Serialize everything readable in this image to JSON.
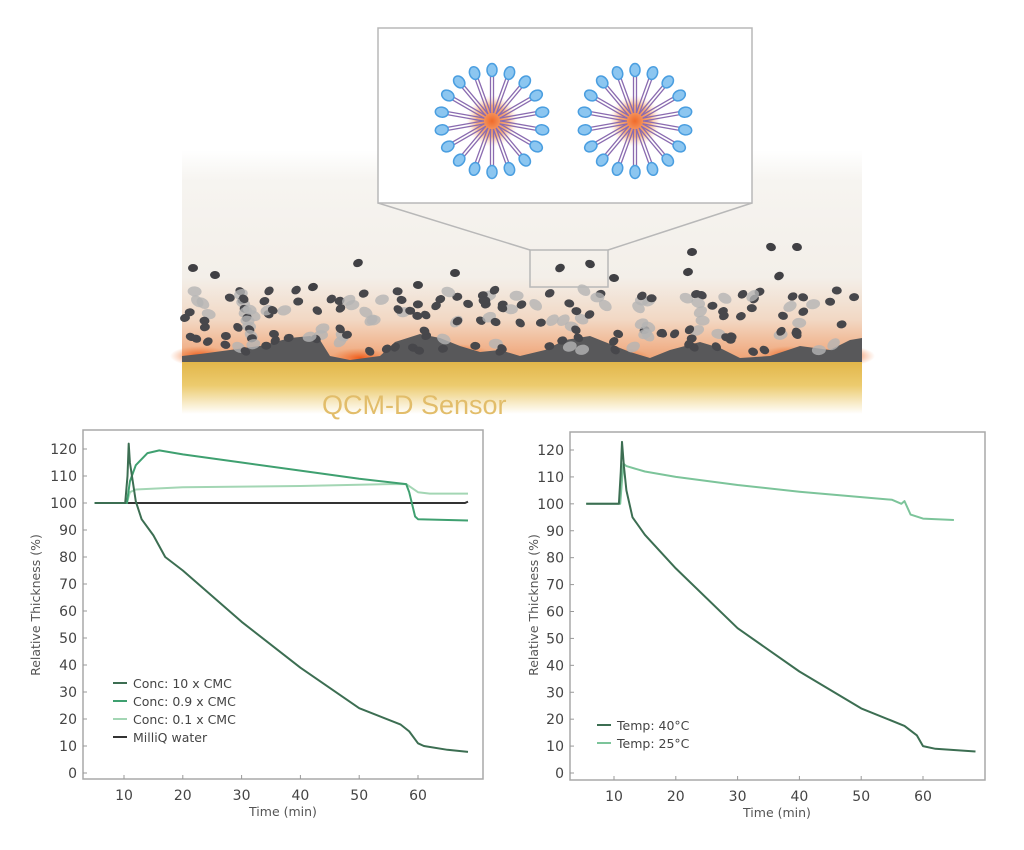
{
  "diagram": {
    "sensor_label": "QCM-D Sensor",
    "colors": {
      "gold": "#e8c25a",
      "film": "#5a5a5c",
      "heat": "#f06a2a",
      "head": "#6fb6ea",
      "tail": "#8a6bb0",
      "core": "#f07a3c"
    }
  },
  "chart_data": [
    {
      "type": "line",
      "xlabel": "Time (min)",
      "ylabel": "Relative Thickness (%)",
      "xlim": [
        4,
        70
      ],
      "ylim": [
        -2,
        125
      ],
      "xticks": [
        10,
        20,
        30,
        40,
        50,
        60
      ],
      "yticks": [
        0,
        10,
        20,
        30,
        40,
        50,
        60,
        70,
        80,
        90,
        100,
        110,
        120
      ],
      "grid": false,
      "legend": "bottom-left",
      "series": [
        {
          "name": "Conc: 10 x CMC",
          "color": "#3c6e52",
          "x": [
            5,
            10.2,
            10.6,
            10.8,
            11,
            12,
            13,
            15,
            17,
            20,
            30,
            40,
            50,
            57,
            58.5,
            60,
            61,
            65,
            68.5
          ],
          "y": [
            100,
            100,
            110,
            122,
            115,
            100.6,
            94,
            88,
            80,
            75,
            56,
            39,
            24,
            18,
            15.4,
            11,
            10,
            8.6,
            7.8
          ]
        },
        {
          "name": "Conc: 0.9 x CMC",
          "color": "#3fa070",
          "x": [
            5,
            10.5,
            11,
            12,
            14,
            16,
            20,
            30,
            40,
            50,
            58,
            58.5,
            59.5,
            60,
            68.5
          ],
          "y": [
            100,
            100,
            108,
            114,
            118.5,
            119.5,
            118,
            115,
            112,
            109,
            107,
            104,
            95,
            94,
            93.5
          ]
        },
        {
          "name": "Conc: 0.1 x CMC",
          "color": "#a3d6b4",
          "x": [
            5,
            10.5,
            11,
            12,
            20,
            40,
            55,
            58,
            60,
            62,
            68.5
          ],
          "y": [
            100,
            100,
            104,
            105,
            105.8,
            106.3,
            107,
            107,
            104,
            103.5,
            103.5
          ]
        },
        {
          "name": "MilliQ water",
          "color": "#333333",
          "x": [
            5,
            68,
            68.5
          ],
          "y": [
            100,
            100,
            100.5
          ]
        }
      ]
    },
    {
      "type": "line",
      "xlabel": "Time (min)",
      "ylabel": "Relative Thickness (%)",
      "xlim": [
        4,
        70
      ],
      "ylim": [
        -2,
        125
      ],
      "xticks": [
        10,
        20,
        30,
        40,
        50,
        60
      ],
      "yticks": [
        0,
        10,
        20,
        30,
        40,
        50,
        60,
        70,
        80,
        90,
        100,
        110,
        120
      ],
      "grid": false,
      "legend": "bottom-left",
      "series": [
        {
          "name": "Temp: 40°C",
          "color": "#3c6e52",
          "x": [
            5.5,
            10.8,
            11.1,
            11.3,
            11.6,
            12,
            13,
            15,
            20,
            30,
            40,
            50,
            57,
            59,
            60,
            62,
            68.5
          ],
          "y": [
            100,
            100,
            112,
            123,
            114,
            105,
            95,
            88.5,
            76,
            53.8,
            37.7,
            24,
            17.5,
            14,
            10,
            9,
            8
          ]
        },
        {
          "name": "Temp: 25°C",
          "color": "#7cc49a",
          "x": [
            5.5,
            11,
            11.5,
            12,
            15,
            20,
            30,
            40,
            50,
            55,
            56.5,
            57,
            58,
            60,
            65
          ],
          "y": [
            100,
            100,
            115,
            114,
            112,
            110,
            107,
            104.5,
            102.5,
            101.5,
            100,
            101,
            96,
            94.5,
            94
          ]
        }
      ]
    }
  ]
}
